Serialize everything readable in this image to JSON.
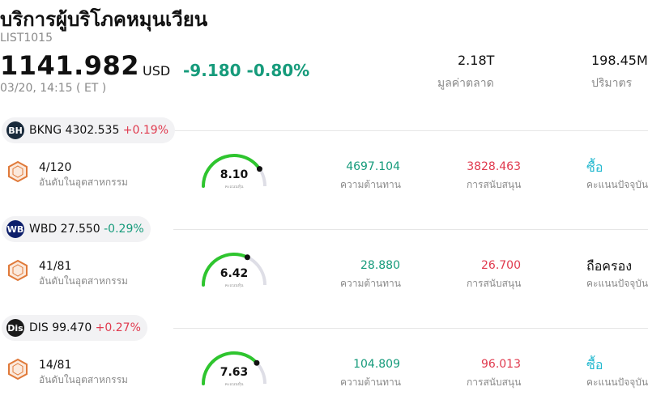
{
  "header": {
    "title": "บริการผู้บริโภคหมุนเวียน",
    "code": "LIST1015",
    "price": "1141.982",
    "currency": "USD",
    "change": "-9.180",
    "change_pct": "-0.80%",
    "timestamp": "03/20, 14:15 ( ET )",
    "market_cap": "2.18T",
    "market_cap_label": "มูลค่าตลาด",
    "volume": "198.45M",
    "volume_label": "ปริมาตร"
  },
  "colors": {
    "up": "#e03a4e",
    "down": "#169b7b",
    "buy": "#22b8cf",
    "gauge": "#2ec52e"
  },
  "stocks": [
    {
      "ticker": "BKNG",
      "price": "4302.535",
      "change": "+0.19%",
      "direction": "up",
      "logo": "BH",
      "logo_icon": "booking-logo-icon",
      "rank": "4/120",
      "rank_label": "อันดับในอุตสาหกรรม",
      "score": "8.10",
      "score_level": 0.81,
      "score_label": "คะแนนหุ้น",
      "resistance": "4697.104",
      "resistance_label": "ความต้านทาน",
      "support": "3828.463",
      "support_label": "การสนับสนุน",
      "rating": "ซื้อ",
      "rating_type": "buy",
      "rating_label": "คะแนนปัจจุบัน"
    },
    {
      "ticker": "WBD",
      "price": "27.550",
      "change": "-0.29%",
      "direction": "down",
      "logo": "WB",
      "logo_icon": "warner-logo-icon",
      "rank": "41/81",
      "rank_label": "อันดับในอุตสาหกรรม",
      "score": "6.42",
      "score_level": 0.642,
      "score_label": "คะแนนหุ้น",
      "resistance": "28.880",
      "resistance_label": "ความต้านทาน",
      "support": "26.700",
      "support_label": "การสนับสนุน",
      "rating": "ถือครอง",
      "rating_type": "hold",
      "rating_label": "คะแนนปัจจุบัน"
    },
    {
      "ticker": "DIS",
      "price": "99.470",
      "change": "+0.27%",
      "direction": "up",
      "logo": "Dis",
      "logo_icon": "disney-logo-icon",
      "rank": "14/81",
      "rank_label": "อันดับในอุตสาหกรรม",
      "score": "7.63",
      "score_level": 0.763,
      "score_label": "คะแนนหุ้น",
      "resistance": "104.809",
      "resistance_label": "ความต้านทาน",
      "support": "96.013",
      "support_label": "การสนับสนุน",
      "rating": "ซื้อ",
      "rating_type": "buy",
      "rating_label": "คะแนนปัจจุบัน"
    }
  ]
}
